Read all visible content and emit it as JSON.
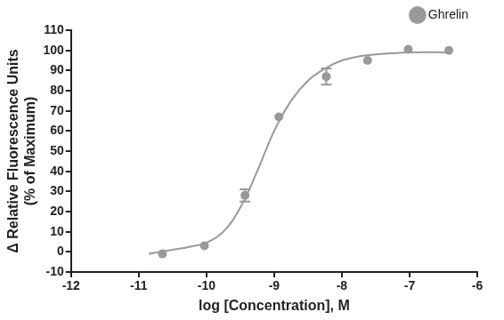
{
  "chart_data": {
    "type": "scatter",
    "x_label": "log [Concentration], M",
    "y_label": [
      "Δ Relative Fluorescence Units",
      "(% of Maximum)"
    ],
    "series": [
      {
        "name": "Ghrelin",
        "color": "#999999",
        "type": "scatter",
        "marker": "circle",
        "x": [
          -10.65,
          -10.03,
          -9.43,
          -8.93,
          -8.23,
          -7.62,
          -7.02,
          -6.42
        ],
        "values": [
          -1,
          3,
          28,
          67,
          87,
          95,
          100.5,
          100
        ],
        "errors": [
          0,
          0,
          3,
          0,
          4,
          0,
          0,
          0
        ]
      },
      {
        "color": "#999999",
        "type": "line",
        "line_style": "solid",
        "x": [
          -10.85,
          -10.5,
          -10.25,
          -10,
          -9.75,
          -9.5,
          -9.25,
          -9,
          -8.75,
          -8.5,
          -8.25,
          -8,
          -7.75,
          -7.5,
          -7,
          -6.42
        ],
        "values": [
          -1,
          1,
          2.5,
          4.5,
          10,
          22,
          40,
          60,
          75,
          85,
          91,
          95,
          97,
          98,
          99,
          99
        ]
      }
    ],
    "xlim": [
      -12,
      -6
    ],
    "xticks": [
      -12,
      -11,
      -10,
      -9,
      -8,
      -7,
      -6
    ],
    "ylim": [
      -10,
      110
    ],
    "yticks": [
      -10,
      0,
      10,
      20,
      30,
      40,
      50,
      60,
      70,
      80,
      90,
      100,
      110
    ],
    "grid": false,
    "legend": "top-right"
  }
}
